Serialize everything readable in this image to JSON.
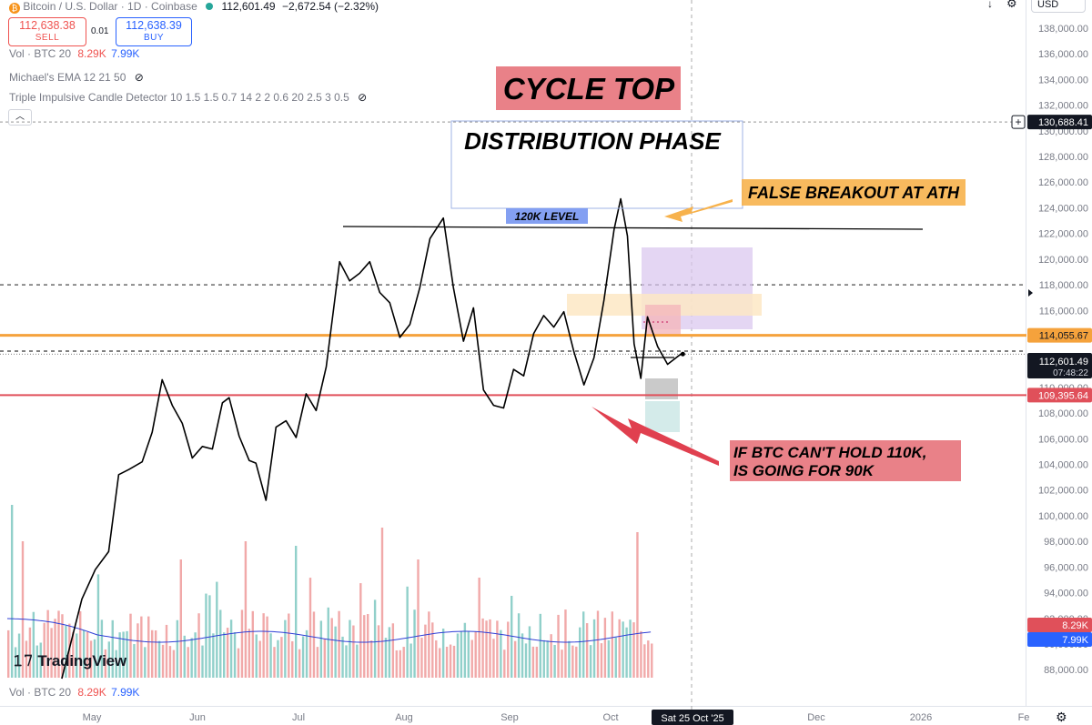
{
  "header": {
    "symbol": "Bitcoin / U.S. Dollar · 1D · Coinbase",
    "last": "112,601.49",
    "change": "−2,672.54 (−2.32%)",
    "sell_price": "112,638.38",
    "sell_label": "SELL",
    "spread": "0.01",
    "buy_price": "112,638.39",
    "buy_label": "BUY",
    "currency": "USD"
  },
  "indicators": {
    "vol_label": "Vol · BTC 20",
    "vol_up": "8.29K",
    "vol_down": "7.99K",
    "ema_label": "Michael's EMA 12 21 50",
    "detector_label": "Triple Impulsive Candle Detector 10 1.5 1.5 0.7 14 2 2 0.6 20 2.5 3 0.5",
    "bottom_vol_label": "Vol · BTC 20",
    "bottom_vol_up": "8.29K",
    "bottom_vol_down": "7.99K"
  },
  "annotations": {
    "cycle_top": "CYCLE TOP",
    "distribution": "DISTRIBUTION PHASE",
    "level_120k": "120K LEVEL",
    "false_breakout": "FALSE BREAKOUT AT ATH",
    "hold_line1": "IF BTC CAN'T HOLD 110K,",
    "hold_line2": "IS GOING FOR 90K"
  },
  "price_tags": {
    "crosshair": "130,688.41",
    "orange_line": "114,055.67",
    "last_price": "112,601.49",
    "countdown": "07:48:22",
    "red_line": "109,395.64",
    "vol_up": "8.29K",
    "vol_down": "7.99K"
  },
  "date_cursor": "Sat 25 Oct '25",
  "logo": "TradingView",
  "colors": {
    "price_line": "#000000",
    "orange_level": "#f5a23c",
    "red_level": "#e0505a",
    "vol_up_bar": "#7ec8c1",
    "vol_down_bar": "#ef9a9a",
    "vol_ma": "#2f3fd6",
    "annotation_red": "#e7737b",
    "annotation_orange": "#f7b24c",
    "level_label_blue": "#6f8ff0"
  },
  "chart_data": {
    "type": "line",
    "title": "Bitcoin / U.S. Dollar · 1D · Coinbase",
    "x_tick_labels": [
      "May",
      "Jun",
      "Jul",
      "Aug",
      "Sep",
      "Oct",
      "Dec",
      "2026",
      "Fe"
    ],
    "y_tick_labels": [
      "88,000.00",
      "90,000.00",
      "92,000.00",
      "94,000.00",
      "96,000.00",
      "98,000.00",
      "100,000.00",
      "102,000.00",
      "104,000.00",
      "106,000.00",
      "108,000.00",
      "110,000.00",
      "112,000.00",
      "114,000.00",
      "116,000.00",
      "118,000.00",
      "120,000.00",
      "122,000.00",
      "124,000.00",
      "126,000.00",
      "128,000.00",
      "130,000.00",
      "132,000.00",
      "134,000.00",
      "136,000.00",
      "138,000.00"
    ],
    "ylim": [
      87500,
      139500
    ],
    "levels": {
      "resistance_120k": 123250,
      "dashed_118k": 118000,
      "orange": 114055.67,
      "red": 109395.64,
      "crosshair": 130688.41
    },
    "series": [
      {
        "name": "BTC",
        "x": [
          "2025-04-22",
          "2025-04-28",
          "2025-05-02",
          "2025-05-06",
          "2025-05-09",
          "2025-05-12",
          "2025-05-16",
          "2025-05-19",
          "2025-05-22",
          "2025-05-25",
          "2025-05-28",
          "2025-05-31",
          "2025-06-03",
          "2025-06-06",
          "2025-06-09",
          "2025-06-11",
          "2025-06-14",
          "2025-06-17",
          "2025-06-19",
          "2025-06-22",
          "2025-06-25",
          "2025-06-28",
          "2025-07-01",
          "2025-07-04",
          "2025-07-07",
          "2025-07-10",
          "2025-07-14",
          "2025-07-17",
          "2025-07-20",
          "2025-07-23",
          "2025-07-26",
          "2025-07-29",
          "2025-08-01",
          "2025-08-04",
          "2025-08-07",
          "2025-08-10",
          "2025-08-14",
          "2025-08-17",
          "2025-08-20",
          "2025-08-23",
          "2025-08-26",
          "2025-08-29",
          "2025-09-01",
          "2025-09-04",
          "2025-09-07",
          "2025-09-10",
          "2025-09-13",
          "2025-09-16",
          "2025-09-19",
          "2025-09-22",
          "2025-09-25",
          "2025-09-28",
          "2025-10-01",
          "2025-10-04",
          "2025-10-06",
          "2025-10-08",
          "2025-10-10",
          "2025-10-12",
          "2025-10-14",
          "2025-10-17",
          "2025-10-20",
          "2025-10-23",
          "2025-10-24"
        ],
        "y": [
          87300,
          93500,
          95800,
          97200,
          103200,
          103600,
          104200,
          106500,
          110600,
          108600,
          107200,
          104500,
          105400,
          105200,
          108800,
          109200,
          106200,
          104300,
          104100,
          101200,
          106900,
          107400,
          106100,
          109500,
          108200,
          111600,
          119800,
          118300,
          118900,
          119800,
          117400,
          116600,
          113900,
          114900,
          117800,
          121600,
          123200,
          117800,
          113600,
          116200,
          109800,
          108600,
          108400,
          111400,
          110900,
          114200,
          115600,
          114700,
          115900,
          112800,
          110200,
          112300,
          116800,
          122300,
          124700,
          121800,
          113400,
          110700,
          115500,
          113200,
          111800,
          112400,
          112600
        ]
      }
    ]
  }
}
